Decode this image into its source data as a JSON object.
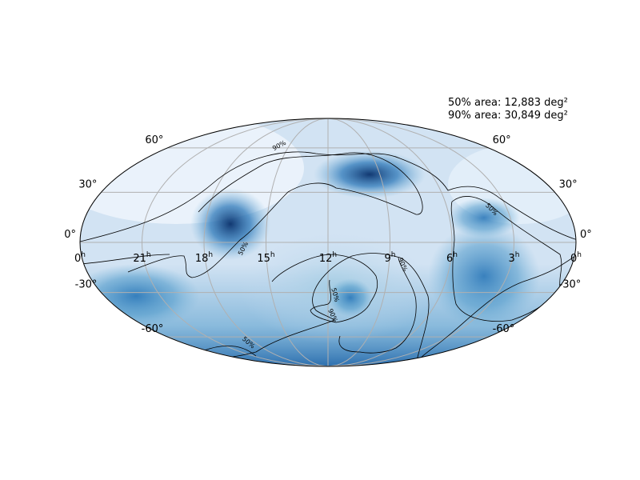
{
  "chart_data": {
    "type": "heatmap",
    "projection": "mollweide",
    "colormap": "Blues",
    "colors": {
      "grid": "#b0b0b0",
      "contour": "#000000",
      "dark": "#08306b",
      "light": "#f7fbff"
    },
    "grid": true,
    "legend": "none",
    "annotations": [
      "50% area: 12,883 deg²",
      "90% area: 30,849 deg²"
    ],
    "ra_ticks": [
      {
        "hours": 0,
        "label": "0",
        "sup": "h"
      },
      {
        "hours": 21,
        "label": "21",
        "sup": "h"
      },
      {
        "hours": 18,
        "label": "18",
        "sup": "h"
      },
      {
        "hours": 15,
        "label": "15",
        "sup": "h"
      },
      {
        "hours": 12,
        "label": "12",
        "sup": "h"
      },
      {
        "hours": 9,
        "label": "9",
        "sup": "h"
      },
      {
        "hours": 6,
        "label": "6",
        "sup": "h"
      },
      {
        "hours": 3,
        "label": "3",
        "sup": "h"
      },
      {
        "hours": 0,
        "label": "0",
        "sup": "h"
      }
    ],
    "dec_ticks": [
      {
        "deg": 60,
        "label": "60°"
      },
      {
        "deg": 30,
        "label": "30°"
      },
      {
        "deg": 0,
        "label": "0°"
      },
      {
        "deg": -30,
        "label": "-30°"
      },
      {
        "deg": -60,
        "label": "-60°"
      }
    ],
    "contour_levels": [
      "50%",
      "90%"
    ]
  }
}
